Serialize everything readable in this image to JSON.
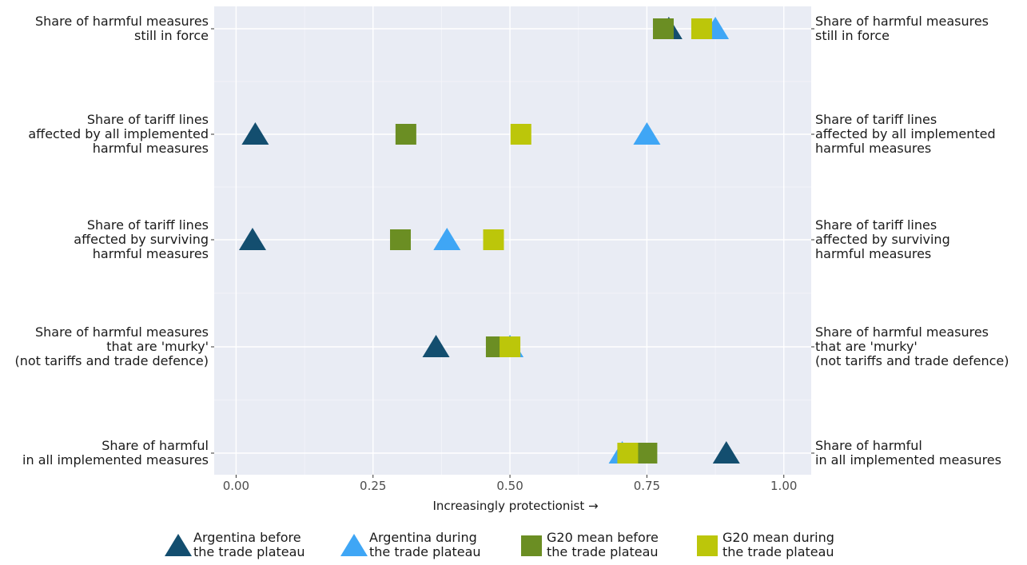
{
  "chart_data": {
    "type": "scatter",
    "xlabel": "Increasingly protectionist →",
    "xlim": [
      -0.04,
      1.05
    ],
    "x_ticks": [
      "0.00",
      "0.25",
      "0.50",
      "0.75",
      "1.00"
    ],
    "x_tick_values": [
      0,
      0.25,
      0.5,
      0.75,
      1.0
    ],
    "grid": true,
    "legend_position": "bottom",
    "categories": [
      {
        "lines": [
          "Share of harmful measures",
          "still in force"
        ]
      },
      {
        "lines": [
          "Share of tariff lines",
          "affected by all implemented",
          "harmful measures"
        ]
      },
      {
        "lines": [
          "Share of tariff lines",
          "affected by surviving",
          "harmful measures"
        ]
      },
      {
        "lines": [
          "Share of harmful measures",
          "that are 'murky'",
          "(not tariffs and trade defence)"
        ]
      },
      {
        "lines": [
          "Share of harmful",
          "in all implemented measures"
        ]
      }
    ],
    "series": [
      {
        "lines": [
          "Argentina before",
          "the trade plateau"
        ],
        "shape": "triangle",
        "color": "#134e6f",
        "values": [
          0.79,
          0.035,
          0.03,
          0.365,
          0.895
        ]
      },
      {
        "lines": [
          "Argentina during",
          "the trade plateau"
        ],
        "shape": "triangle",
        "color": "#3fa6f5",
        "values": [
          0.875,
          0.75,
          0.385,
          0.5,
          0.705
        ]
      },
      {
        "lines": [
          "G20 mean before",
          "the trade plateau"
        ],
        "shape": "square",
        "color": "#6b8e23",
        "values": [
          0.78,
          0.31,
          0.3,
          0.475,
          0.75
        ]
      },
      {
        "lines": [
          "G20 mean during",
          "the trade plateau"
        ],
        "shape": "square",
        "color": "#bcc60a",
        "values": [
          0.85,
          0.52,
          0.47,
          0.5,
          0.715
        ]
      }
    ]
  }
}
